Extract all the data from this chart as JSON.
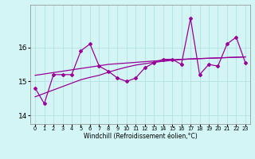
{
  "xlabel": "Windchill (Refroidissement éolien,°C)",
  "x": [
    0,
    1,
    2,
    3,
    4,
    5,
    6,
    7,
    8,
    9,
    10,
    11,
    12,
    13,
    14,
    15,
    16,
    17,
    18,
    19,
    20,
    21,
    22,
    23
  ],
  "main_line": [
    14.8,
    14.35,
    15.2,
    15.2,
    15.2,
    15.9,
    16.1,
    15.45,
    15.3,
    15.1,
    15.0,
    15.1,
    15.4,
    15.55,
    15.65,
    15.65,
    15.5,
    16.85,
    15.2,
    15.5,
    15.45,
    16.1,
    16.3,
    15.55
  ],
  "avg_line": [
    15.18,
    15.22,
    15.26,
    15.3,
    15.34,
    15.38,
    15.42,
    15.46,
    15.5,
    15.52,
    15.54,
    15.56,
    15.58,
    15.6,
    15.62,
    15.64,
    15.65,
    15.66,
    15.67,
    15.68,
    15.69,
    15.7,
    15.71,
    15.72
  ],
  "reg_line": [
    14.55,
    14.65,
    14.75,
    14.85,
    14.95,
    15.05,
    15.12,
    15.18,
    15.27,
    15.35,
    15.42,
    15.48,
    15.52,
    15.56,
    15.59,
    15.62,
    15.64,
    15.66,
    15.67,
    15.68,
    15.69,
    15.7,
    15.71,
    15.72
  ],
  "line_color": "#990099",
  "bg_color": "#d4f5f5",
  "grid_color": "#b0dede",
  "ylim": [
    13.75,
    17.25
  ],
  "yticks": [
    14,
    15,
    16
  ],
  "xlim": [
    -0.5,
    23.5
  ]
}
